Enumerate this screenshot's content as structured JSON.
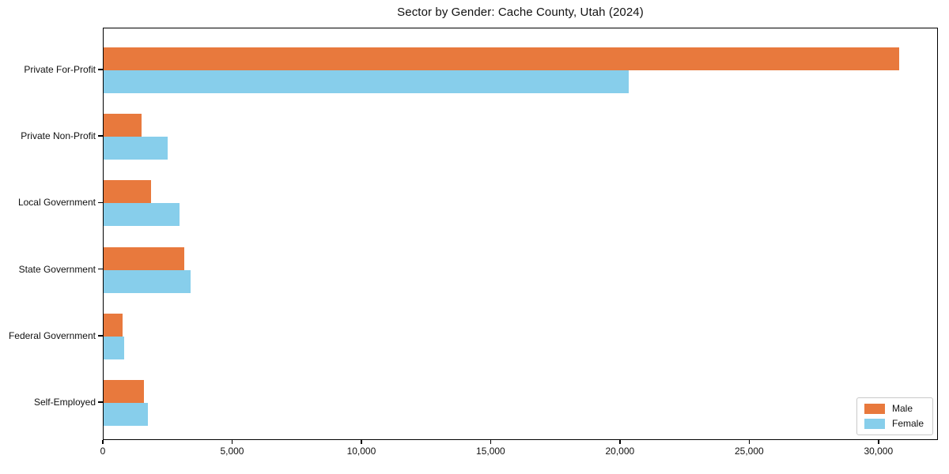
{
  "chart_data": {
    "type": "bar",
    "orientation": "horizontal",
    "title": "Sector by Gender: Cache County, Utah (2024)",
    "categories": [
      "Private For-Profit",
      "Private Non-Profit",
      "Local Government",
      "State Government",
      "Federal Government",
      "Self-Employed"
    ],
    "series": [
      {
        "name": "Male",
        "color": "#e8793d",
        "values": [
          30770,
          1480,
          1850,
          3120,
          730,
          1560
        ]
      },
      {
        "name": "Female",
        "color": "#87ceeb",
        "values": [
          20320,
          2480,
          2940,
          3360,
          800,
          1710
        ]
      }
    ],
    "xlabel": "",
    "ylabel": "",
    "xlim": [
      0,
      32300
    ],
    "x_ticks": [
      0,
      5000,
      10000,
      15000,
      20000,
      25000,
      30000
    ],
    "x_tick_labels": [
      "0",
      "5,000",
      "10,000",
      "15,000",
      "20,000",
      "25,000",
      "30,000"
    ],
    "grid": false,
    "legend": {
      "position": "lower right"
    },
    "colors": {
      "male": "#e8793d",
      "female": "#87ceeb",
      "spine": "#000000",
      "legend_border": "#c9c9c9"
    }
  }
}
